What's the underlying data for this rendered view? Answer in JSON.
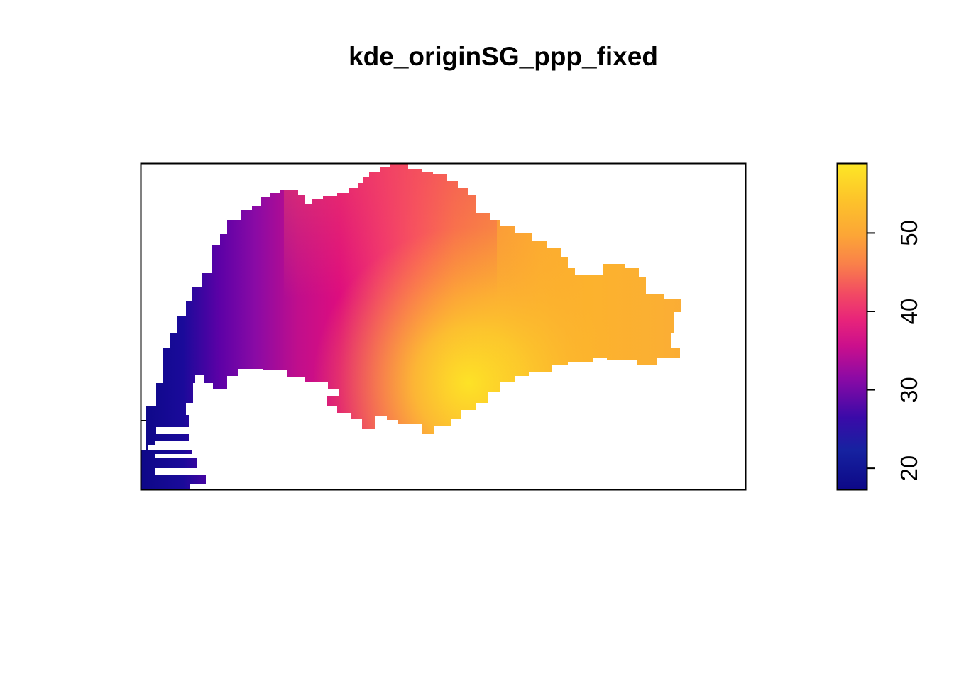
{
  "chart_data": {
    "type": "heatmap",
    "title": "kde_originSG_ppp_fixed",
    "xlabel": "",
    "ylabel": "",
    "axes_drawn": false,
    "colormap": "plasma",
    "colorbar": {
      "ticks": [
        20,
        30,
        40,
        50
      ],
      "tick_labels": [
        "20",
        "30",
        "40",
        "50"
      ],
      "range": [
        17.3,
        58.9
      ],
      "stops": [
        "#0d0887",
        "#1c0b95",
        "#5c01a6",
        "#9c179e",
        "#cc4778",
        "#e64d5b",
        "#f89540",
        "#fdc527",
        "#f0f921"
      ]
    },
    "intensity_summary": {
      "min": 17.3,
      "max": 58.9,
      "peak_location": "south-central",
      "low_location": "west"
    },
    "background": "#ffffff"
  }
}
